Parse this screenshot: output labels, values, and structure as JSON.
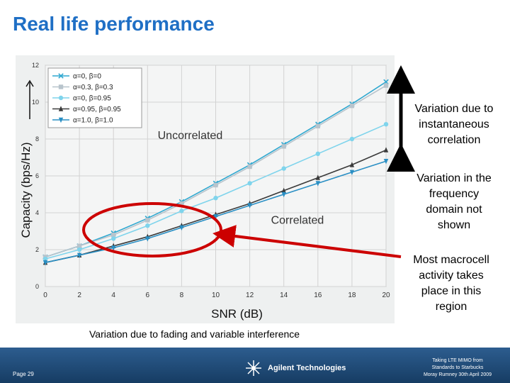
{
  "title": "Real life performance",
  "notes": {
    "instantaneous": [
      "Variation due to",
      "instantaneous",
      "correlation"
    ],
    "frequency": [
      "Variation in the",
      "frequency",
      "domain not",
      "shown"
    ],
    "macrocell": [
      "Most macrocell",
      "activity  takes",
      "place in this",
      "region"
    ]
  },
  "caption": "Variation due to fading and variable interference",
  "footer": {
    "page": "Page 29",
    "logo": "Agilent Technologies",
    "credit": [
      "Taking LTE MIMO from",
      "Standards to Starbucks",
      "Moray Rumney 30th April 2009"
    ]
  },
  "colors": {
    "title": "#1f6fc5",
    "arrow_red": "#cc0000",
    "footer": "#1f4d7a"
  },
  "chart_data": {
    "type": "line",
    "xlabel": "SNR (dB)",
    "ylabel": "Capacity (bps/Hz)",
    "x": [
      0,
      2,
      4,
      6,
      8,
      10,
      12,
      14,
      16,
      18,
      20
    ],
    "xlim": [
      0,
      20
    ],
    "ylim": [
      0,
      12
    ],
    "xticks": [
      0,
      2,
      4,
      6,
      8,
      10,
      12,
      14,
      16,
      18,
      20
    ],
    "yticks": [
      0,
      2,
      4,
      6,
      8,
      10,
      12
    ],
    "grid": true,
    "legend_position": "top-left",
    "annotations": [
      "Uncorrelated",
      "Correlated"
    ],
    "series": [
      {
        "name": "α=0, β=0",
        "color": "#2fa8d0",
        "marker": "x",
        "values": [
          1.6,
          2.2,
          2.9,
          3.7,
          4.6,
          5.6,
          6.6,
          7.7,
          8.8,
          9.9,
          11.1
        ]
      },
      {
        "name": "α=0.3, β=0.3",
        "color": "#b8c4cc",
        "marker": "square",
        "values": [
          1.6,
          2.2,
          2.8,
          3.6,
          4.5,
          5.5,
          6.5,
          7.6,
          8.7,
          9.8,
          10.9
        ]
      },
      {
        "name": "α=0, β=0.95",
        "color": "#7fd4ec",
        "marker": "circle",
        "values": [
          1.5,
          2.0,
          2.6,
          3.3,
          4.1,
          4.8,
          5.6,
          6.4,
          7.2,
          8.0,
          8.8
        ]
      },
      {
        "name": "α=0.95, β=0.95",
        "color": "#3a3a3a",
        "marker": "triangle",
        "values": [
          1.3,
          1.7,
          2.2,
          2.7,
          3.3,
          3.9,
          4.5,
          5.2,
          5.9,
          6.6,
          7.4
        ]
      },
      {
        "name": "α=1.0, β=1.0",
        "color": "#2a8fc4",
        "marker": "triangle-down",
        "values": [
          1.3,
          1.7,
          2.1,
          2.6,
          3.2,
          3.8,
          4.4,
          5.0,
          5.6,
          6.2,
          6.8
        ]
      }
    ]
  }
}
